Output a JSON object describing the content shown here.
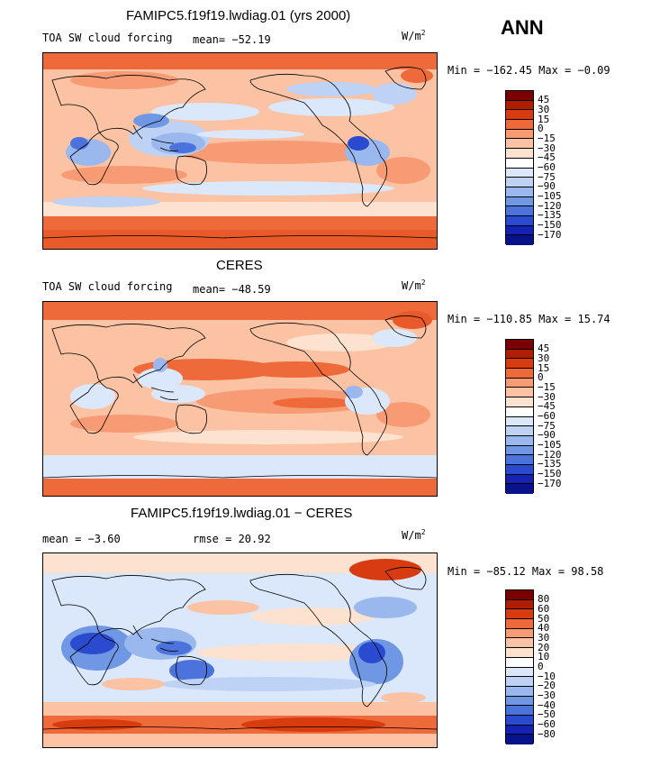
{
  "season": "ANN",
  "panels": [
    {
      "title": "FAMIPC5.f19f19.lwdiag.01 (yrs 2000)",
      "left_label": "TOA SW cloud forcing",
      "stat_label": "mean= −52.19",
      "units_base": "W/m",
      "units_exp": "2",
      "minmax": "Min = −162.45 Max =  −0.09",
      "colorbar": {
        "labels": [
          "45",
          "30",
          "15",
          "0",
          "−15",
          "−30",
          "−45",
          "−60",
          "−75",
          "−90",
          "−105",
          "−120",
          "−135",
          "−150",
          "−170"
        ],
        "colors": [
          "#7a0000",
          "#b01d00",
          "#d93b10",
          "#ef6a3a",
          "#f79b74",
          "#fbc3a4",
          "#fde2cf",
          "#ffffff",
          "#dbe7fa",
          "#bdd2f5",
          "#9bb8ee",
          "#7097e4",
          "#4c73db",
          "#2a4bd0",
          "#1522b5",
          "#08128a"
        ]
      }
    },
    {
      "title": "CERES",
      "left_label": "TOA SW cloud forcing",
      "stat_label": "mean= −48.59",
      "units_base": "W/m",
      "units_exp": "2",
      "minmax": "Min = −110.85 Max =  15.74",
      "colorbar": {
        "labels": [
          "45",
          "30",
          "15",
          "0",
          "−15",
          "−30",
          "−45",
          "−60",
          "−75",
          "−90",
          "−105",
          "−120",
          "−135",
          "−150",
          "−170"
        ],
        "colors": [
          "#7a0000",
          "#b01d00",
          "#d93b10",
          "#ef6a3a",
          "#f79b74",
          "#fbc3a4",
          "#fde2cf",
          "#ffffff",
          "#dbe7fa",
          "#bdd2f5",
          "#9bb8ee",
          "#7097e4",
          "#4c73db",
          "#2a4bd0",
          "#1522b5",
          "#08128a"
        ]
      }
    },
    {
      "title": "FAMIPC5.f19f19.lwdiag.01 − CERES",
      "left_label": "mean =  −3.60",
      "stat_label": "rmse =  20.92",
      "units_base": "W/m",
      "units_exp": "2",
      "minmax": "Min = −85.12 Max =  98.58",
      "colorbar": {
        "labels": [
          "80",
          "60",
          "50",
          "40",
          "30",
          "20",
          "10",
          "0",
          "−10",
          "−20",
          "−30",
          "−40",
          "−50",
          "−60",
          "−80"
        ],
        "colors": [
          "#7a0000",
          "#b01d00",
          "#d93b10",
          "#ef6a3a",
          "#f79b74",
          "#fbc3a4",
          "#fde2cf",
          "#ffffff",
          "#dbe7fa",
          "#bdd2f5",
          "#9bb8ee",
          "#7097e4",
          "#4c73db",
          "#2a4bd0",
          "#1522b5",
          "#08128a"
        ]
      }
    }
  ]
}
